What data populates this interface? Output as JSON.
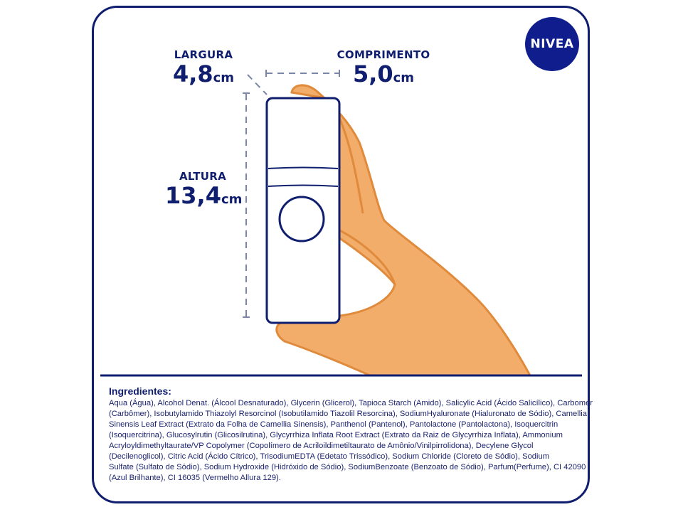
{
  "brand": {
    "logo_text": "NIVEA",
    "color": "#0f1e8c"
  },
  "dimensions": {
    "width": {
      "label": "LARGURA",
      "value": "4,8",
      "unit": "cm"
    },
    "length": {
      "label": "COMPRIMENTO",
      "value": "5,0",
      "unit": "cm"
    },
    "height": {
      "label": "ALTURA",
      "value": "13,4",
      "unit": "cm"
    }
  },
  "colors": {
    "navy": "#0f1e6e",
    "skin": "#f2ad6a",
    "skin_shadow": "#e08a3c"
  },
  "ingredients": {
    "title": "Ingredientes:",
    "lines": [
      "Aqua (Água), Alcohol Denat. (Álcool Desnaturado), Glycerin (Glicerol), Tapioca Starch (Amido), Salicylic Acid (Ácido Salicílico), Carbomer",
      "(Carbômer), Isobutylamido Thiazolyl Resorcinol (Isobutilamido Tiazolil Resorcina), SodiumHyaluronate (Hialuronato de Sódio), Camellia",
      "Sinensis Leaf Extract (Extrato da Folha de Camellia Sinensis), Panthenol (Pantenol), Pantolactone (Pantolactona), Isoquercitrin",
      "(Isoquercitrina), Glucosylrutin (Glicosilrutina), Glycyrrhiza Inflata Root Extract (Extrato da Raiz de Glycyrrhiza Inflata), Ammonium",
      "Acryloyldimethyltaurate/VP Copolymer (Copolímero de Acriloildimetiltaurato de Amônio/Vinilpirrolidona), Decylene Glycol",
      "(Decilenoglicol), Citric Acid (Ácido Cítrico), TrisodiumEDTA (Edetato Trissódico), Sodium Chloride (Cloreto de Sódio), Sodium",
      "Sulfate (Sulfato de Sódio), Sodium Hydroxide (Hidróxido de Sódio), SodiumBenzoate (Benzoato de Sódio), Parfum(Perfume), CI 42090",
      "(Azul Brilhante), CI 16035 (Vermelho Allura 129)."
    ]
  }
}
